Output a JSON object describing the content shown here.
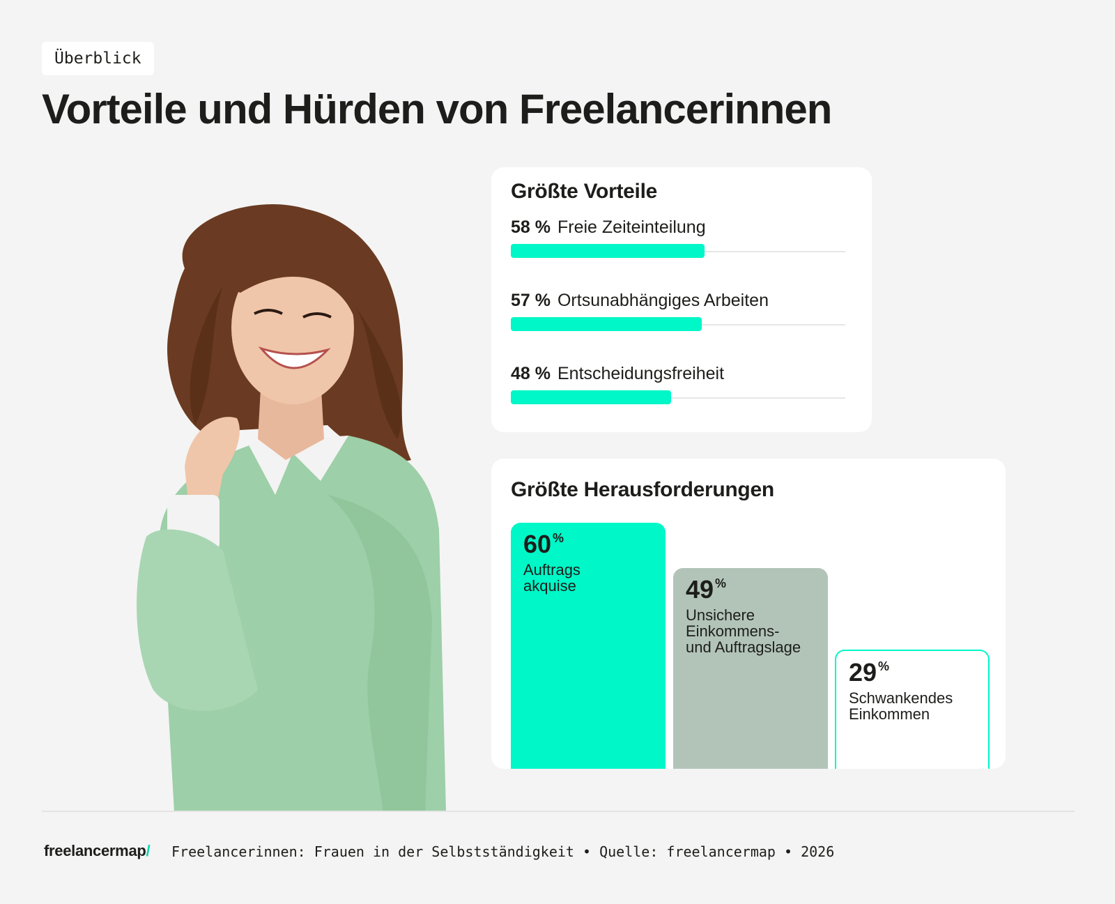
{
  "tag": "Überblick",
  "title": "Vorteile und Hürden von Freelancerinnen",
  "colors": {
    "accent": "#00f7c7",
    "muted_green": "#b2c4b8",
    "background": "#f4f4f4",
    "card": "#ffffff"
  },
  "chart_data": [
    {
      "type": "bar",
      "orientation": "horizontal",
      "title": "Größte Vorteile",
      "categories": [
        "Freie Zeiteinteilung",
        "Ortsunabhängiges Arbeiten",
        "Entscheidungsfreiheit"
      ],
      "values": [
        58,
        57,
        48
      ],
      "value_labels": [
        "58 %",
        "57 %",
        "48 %"
      ],
      "xlim": [
        0,
        100
      ],
      "grid": false
    },
    {
      "type": "bar",
      "orientation": "vertical",
      "title": "Größte Herausforderungen",
      "categories": [
        "Auftrags akquise",
        "Unsichere Einkommens- und Auftragslage",
        "Schwankendes Einkommen"
      ],
      "label_lines": [
        [
          "Auftrags",
          "akquise"
        ],
        [
          "Unsichere",
          "Einkommens-",
          "und Auftragslage"
        ],
        [
          "Schwankendes",
          "Einkommen"
        ]
      ],
      "values": [
        60,
        49,
        29
      ],
      "value_numbers": [
        "60",
        "49",
        "29"
      ],
      "percent_sign": "%",
      "bar_styles": [
        "accent",
        "muted",
        "outline"
      ],
      "grid": false
    }
  ],
  "footer": {
    "logo_text": "freelancermap",
    "logo_slash": "/",
    "text": "Freelancerinnen: Frauen in der Selbstständigkeit • Quelle: freelancermap • 2026"
  }
}
